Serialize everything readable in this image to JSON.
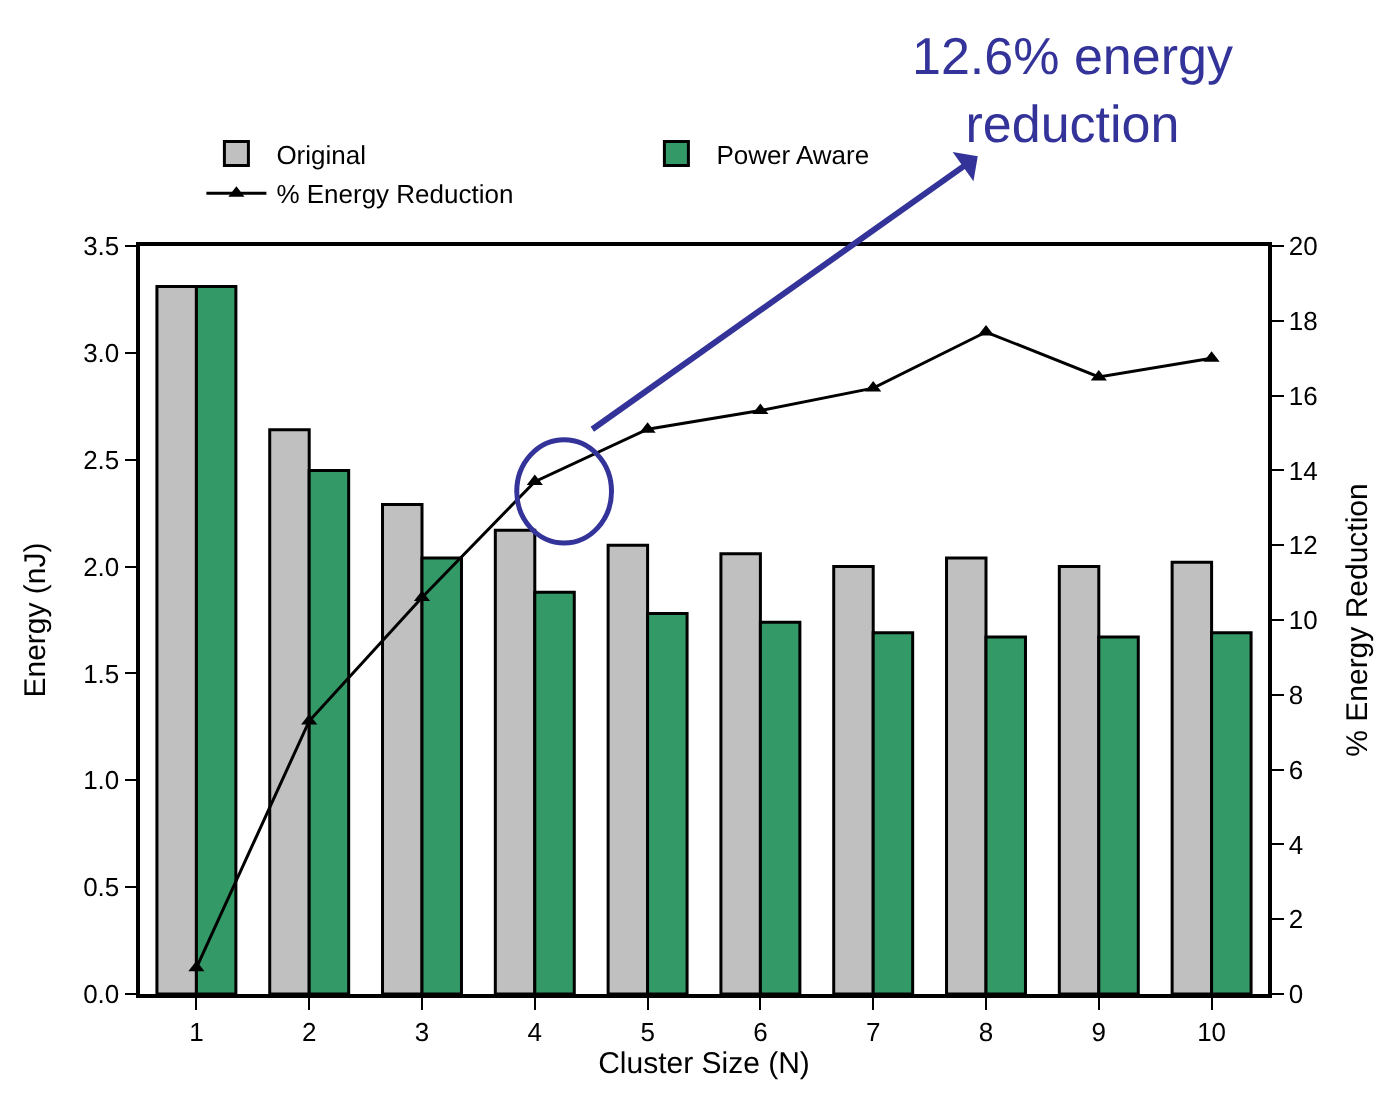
{
  "chart_data": {
    "type": "bar",
    "xlabel": "Cluster Size (N)",
    "ylabel": "Energy (nJ)",
    "y2label": "% Energy Reduction",
    "categories": [
      "1",
      "2",
      "3",
      "4",
      "5",
      "6",
      "7",
      "8",
      "9",
      "10"
    ],
    "series": [
      {
        "name": "Original",
        "color": "#c0c0c0",
        "values": [
          3.31,
          2.64,
          2.29,
          2.17,
          2.1,
          2.06,
          2.0,
          2.04,
          2.0,
          2.02
        ]
      },
      {
        "name": "Power Aware",
        "color": "#339966",
        "values": [
          3.31,
          2.45,
          2.04,
          1.88,
          1.78,
          1.74,
          1.69,
          1.67,
          1.67,
          1.69
        ]
      },
      {
        "name": "% Energy Reduction",
        "type": "line",
        "axis": "y2",
        "color": "#000000",
        "marker": "triangle",
        "values": [
          0.7,
          7.3,
          10.6,
          13.7,
          15.1,
          15.6,
          16.2,
          17.7,
          16.5,
          17.0
        ]
      }
    ],
    "ylim": [
      0,
      3.5
    ],
    "yticks": [
      {
        "value": 0,
        "label": "0.0"
      },
      0.5,
      {
        "value": 1,
        "label": "1.0"
      },
      1.5,
      {
        "value": 2,
        "label": "2.0"
      },
      2.5,
      {
        "value": 3,
        "label": "3.0"
      },
      3.5
    ],
    "y2lim": [
      0,
      20
    ],
    "y2ticks": [
      0,
      2,
      4,
      6,
      8,
      10,
      12,
      14,
      16,
      18,
      20
    ],
    "annotations": [
      "12.6% energy\nreduction"
    ],
    "legend": "top"
  }
}
